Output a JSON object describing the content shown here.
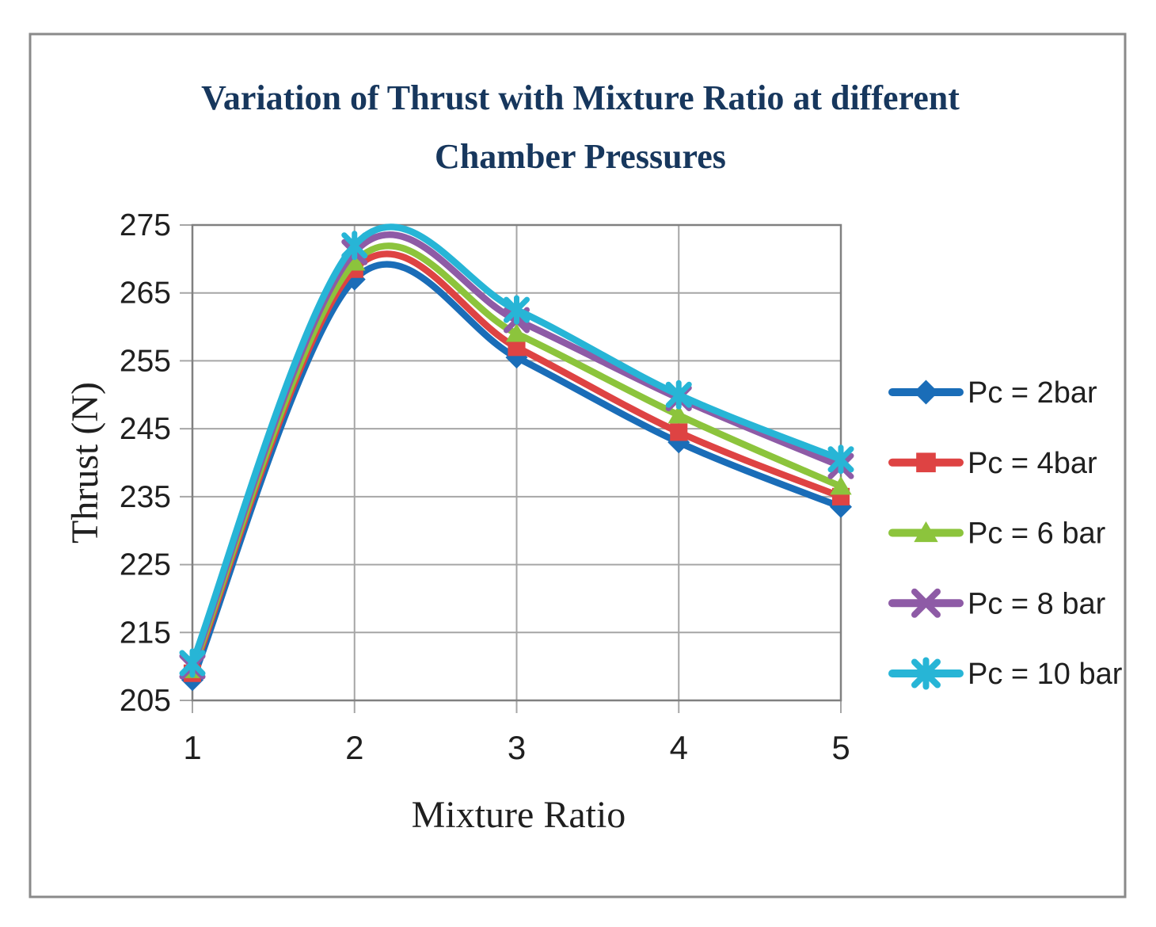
{
  "chart_data": {
    "type": "line",
    "title_lines": [
      "Variation of Thrust with Mixture Ratio at different",
      "Chamber Pressures"
    ],
    "xlabel": "Mixture Ratio",
    "ylabel": "Thrust (N)",
    "x": [
      1,
      2,
      3,
      4,
      5
    ],
    "xticks": [
      1,
      2,
      3,
      4,
      5
    ],
    "yticks": [
      205,
      215,
      225,
      235,
      245,
      255,
      265,
      275
    ],
    "xlim": [
      1,
      5
    ],
    "ylim": [
      205,
      275
    ],
    "grid": true,
    "smooth_lines": true,
    "legend_position": "right",
    "series": [
      {
        "name": "Pc = 2bar",
        "color": "#1A6DB8",
        "marker": "diamond",
        "values": [
          208,
          267,
          255.5,
          243,
          233.5
        ]
      },
      {
        "name": "Pc = 4bar",
        "color": "#DE4343",
        "marker": "square",
        "values": [
          209,
          268.5,
          257,
          244.5,
          235
        ]
      },
      {
        "name": "Pc = 6 bar",
        "color": "#8CC43C",
        "marker": "triangle",
        "values": [
          209.5,
          269.5,
          259,
          247,
          236.5
        ]
      },
      {
        "name": "Pc = 8 bar",
        "color": "#8E5BA6",
        "marker": "x",
        "values": [
          210,
          271,
          261,
          249.5,
          239.5
        ]
      },
      {
        "name": "Pc = 10 bar",
        "color": "#27B5D6",
        "marker": "asterisk",
        "values": [
          210.5,
          272,
          262.5,
          250,
          240.5
        ]
      }
    ],
    "colors": {
      "title": "#17375D",
      "text": "#1F1F1F",
      "grid": "#A6A6A6",
      "plot_border": "#808080",
      "figure_border": "#8A8A8A",
      "background": "#FFFFFF"
    }
  }
}
